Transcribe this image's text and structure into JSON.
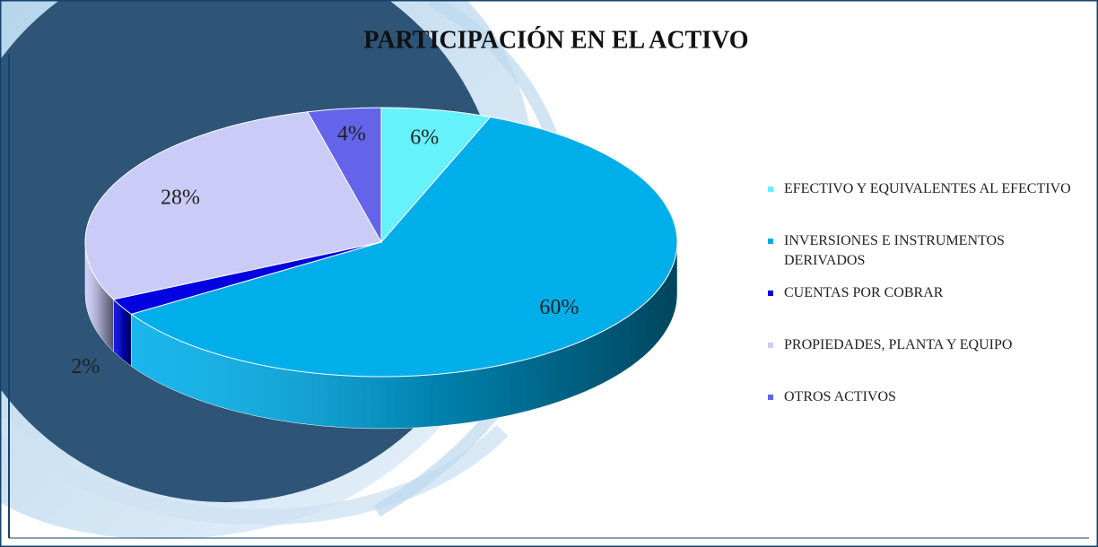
{
  "chart_data": {
    "type": "pie",
    "title": "PARTICIPACIÓN  EN EL ACTIVO",
    "categories": [
      "EFECTIVO Y EQUIVALENTES AL EFECTIVO",
      "INVERSIONES E INSTRUMENTOS DERIVADOS",
      "CUENTAS POR COBRAR",
      "PROPIEDADES, PLANTA  Y EQUIPO",
      "OTROS ACTIVOS"
    ],
    "values": [
      6,
      60,
      2,
      28,
      4
    ],
    "value_labels": [
      "6%",
      "60%",
      "2%",
      "28%",
      "4%"
    ],
    "colors": [
      "#66f2fa",
      "#00aeea",
      "#0000e0",
      "#cbcbf8",
      "#6464ea"
    ],
    "legend": "right"
  }
}
